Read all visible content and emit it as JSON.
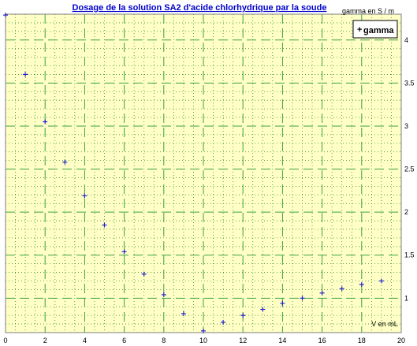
{
  "chart_data": {
    "type": "scatter",
    "title": "Dosage de la solution SA2 d'acide chlorhydrique par la soude",
    "xlabel": "V en mL",
    "ylabel": "gamma en S / m",
    "xlim": [
      0,
      20
    ],
    "ylim": [
      0.6,
      4.3
    ],
    "x_ticks": [
      "0",
      "2",
      "4",
      "6",
      "8",
      "10",
      "12",
      "14",
      "16",
      "18",
      "20"
    ],
    "y_ticks": [
      "1",
      "1.5",
      "2",
      "2.5",
      "3",
      "3.5",
      "4"
    ],
    "grid": true,
    "legend_position": "top-right",
    "series": [
      {
        "name": "gamma",
        "color": "#2222cc",
        "points": [
          {
            "x": 0,
            "y": 4.29
          },
          {
            "x": 1,
            "y": 3.6
          },
          {
            "x": 2,
            "y": 3.05
          },
          {
            "x": 3,
            "y": 2.58
          },
          {
            "x": 4,
            "y": 2.19
          },
          {
            "x": 5,
            "y": 1.85
          },
          {
            "x": 6,
            "y": 1.54
          },
          {
            "x": 7,
            "y": 1.28
          },
          {
            "x": 8,
            "y": 1.04
          },
          {
            "x": 9,
            "y": 0.82
          },
          {
            "x": 10,
            "y": 0.62
          },
          {
            "x": 11,
            "y": 0.72
          },
          {
            "x": 12,
            "y": 0.8
          },
          {
            "x": 13,
            "y": 0.87
          },
          {
            "x": 14,
            "y": 0.94
          },
          {
            "x": 15,
            "y": 1.0
          },
          {
            "x": 16,
            "y": 1.06
          },
          {
            "x": 17,
            "y": 1.11
          },
          {
            "x": 18,
            "y": 1.16
          },
          {
            "x": 19,
            "y": 1.2
          }
        ]
      }
    ]
  },
  "colors": {
    "plot_background": "#ffffc6",
    "major_grid": "#3aa04a",
    "minor_grid": "#3a8a3a",
    "frame": "#7f7f7f"
  }
}
